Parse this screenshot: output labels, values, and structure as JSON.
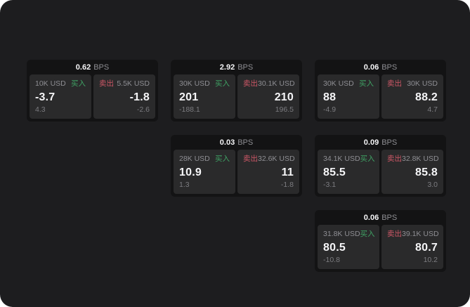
{
  "colors": {
    "page_background": "#ffffff",
    "surface": "#1d1d1f",
    "card_bg": "#131314",
    "panel_bg": "#2a2a2b",
    "text_primary": "#f5f5f7",
    "text_muted": "#8e8e93",
    "text_dim": "#7c7c80",
    "buy_green": "#3fa264",
    "sell_red": "#cc5766"
  },
  "cards": [
    {
      "grid": {
        "row": 1,
        "col": 1
      },
      "header": {
        "value": "0.62",
        "unit": "BPS"
      },
      "buy": {
        "amount": "10K USD",
        "label": "买入",
        "value": "-3.7",
        "sub": "4.3"
      },
      "sell": {
        "label": "卖出",
        "amount": "5.5K USD",
        "value": "-1.8",
        "sub": "-2.6"
      }
    },
    {
      "grid": {
        "row": 1,
        "col": 2
      },
      "header": {
        "value": "2.92",
        "unit": "BPS"
      },
      "buy": {
        "amount": "30K USD",
        "label": "买入",
        "value": "201",
        "sub": "-188.1"
      },
      "sell": {
        "label": "卖出",
        "amount": "30.1K USD",
        "value": "210",
        "sub": "196.5"
      }
    },
    {
      "grid": {
        "row": 1,
        "col": 3
      },
      "header": {
        "value": "0.06",
        "unit": "BPS"
      },
      "buy": {
        "amount": "30K USD",
        "label": "买入",
        "value": "88",
        "sub": "-4.9"
      },
      "sell": {
        "label": "卖出",
        "amount": "30K USD",
        "value": "88.2",
        "sub": "4.7"
      }
    },
    {
      "grid": {
        "row": 2,
        "col": 2
      },
      "header": {
        "value": "0.03",
        "unit": "BPS"
      },
      "buy": {
        "amount": "28K USD",
        "label": "买入",
        "value": "10.9",
        "sub": "1.3"
      },
      "sell": {
        "label": "卖出",
        "amount": "32.6K USD",
        "value": "11",
        "sub": "-1.8"
      }
    },
    {
      "grid": {
        "row": 2,
        "col": 3
      },
      "header": {
        "value": "0.09",
        "unit": "BPS"
      },
      "buy": {
        "amount": "34.1K USD",
        "label": "买入",
        "value": "85.5",
        "sub": "-3.1"
      },
      "sell": {
        "label": "卖出",
        "amount": "32.8K USD",
        "value": "85.8",
        "sub": "3.0"
      }
    },
    {
      "grid": {
        "row": 3,
        "col": 3
      },
      "header": {
        "value": "0.06",
        "unit": "BPS"
      },
      "buy": {
        "amount": "31.8K USD",
        "label": "买入",
        "value": "80.5",
        "sub": "-10.8"
      },
      "sell": {
        "label": "卖出",
        "amount": "39.1K USD",
        "value": "80.7",
        "sub": "10.2"
      }
    }
  ]
}
